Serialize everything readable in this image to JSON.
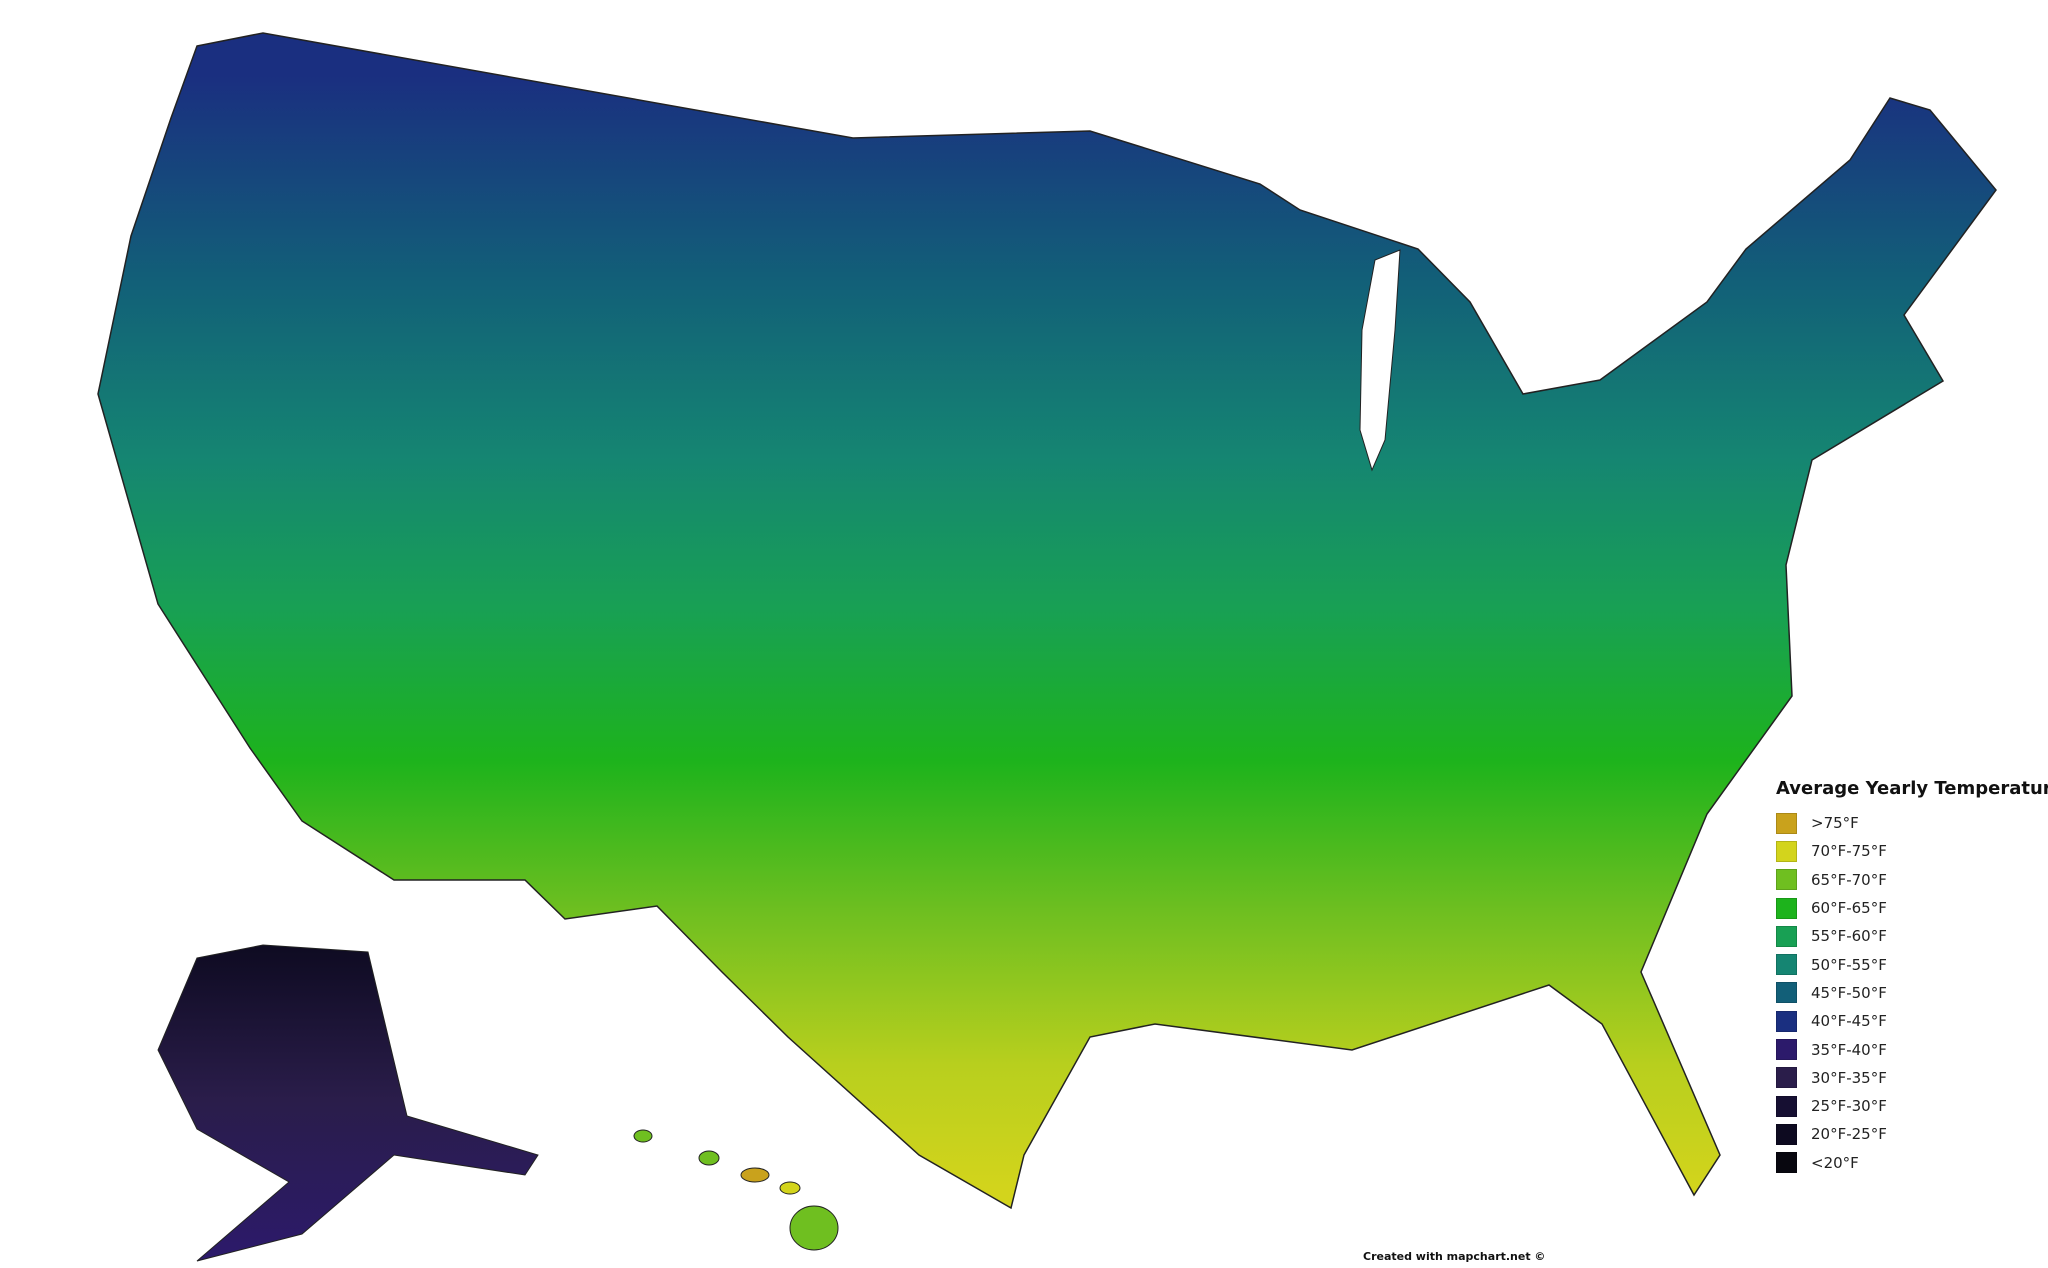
{
  "legend": {
    "title": "Average Yearly Temperature",
    "items": [
      {
        "label": ">75°F",
        "color": "#c9a21c"
      },
      {
        "label": "70°F-75°F",
        "color": "#d3d41c"
      },
      {
        "label": "65°F-70°F",
        "color": "#6fbf20"
      },
      {
        "label": "60°F-65°F",
        "color": "#1db31c"
      },
      {
        "label": "55°F-60°F",
        "color": "#18a054"
      },
      {
        "label": "50°F-55°F",
        "color": "#158572"
      },
      {
        "label": "45°F-50°F",
        "color": "#125f78"
      },
      {
        "label": "40°F-45°F",
        "color": "#1a2f80"
      },
      {
        "label": "35°F-40°F",
        "color": "#2c1a6b"
      },
      {
        "label": "30°F-35°F",
        "color": "#2a1d4a"
      },
      {
        "label": "25°F-30°F",
        "color": "#160f32"
      },
      {
        "label": "20°F-25°F",
        "color": "#0d0a20"
      },
      {
        "label": "<20°F",
        "color": "#08070f"
      }
    ]
  },
  "credit": "Created with mapchart.net ©",
  "regions": {
    "contiguous_us": "north colder (40°F-50°F), south warmer (65°F-75°F)",
    "alaska": "20°F-35°F",
    "hawaii": "65°F-75°F"
  }
}
